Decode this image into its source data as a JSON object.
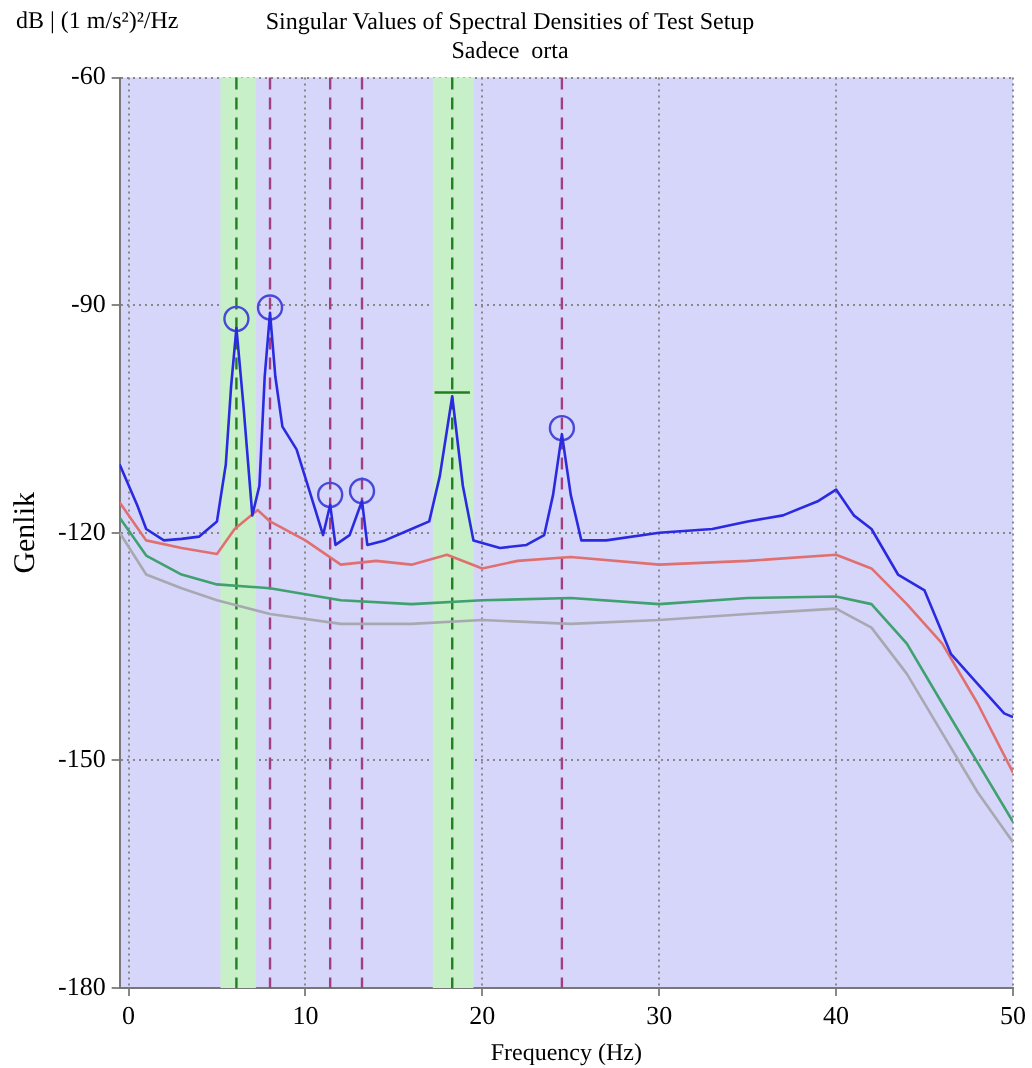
{
  "chart_data": {
    "type": "line",
    "title": "Singular Values of Spectral Densities of Test Setup",
    "subtitle": "Sadece  orta",
    "xlabel": "Frequency (Hz)",
    "ylabel": "Genlik",
    "annotations": [
      "dB | (1 m/s²)²/Hz"
    ],
    "xlim": [
      -0.5,
      50
    ],
    "xticks": [
      0,
      10,
      20,
      30,
      40,
      50
    ],
    "ylim": [
      -180,
      -60
    ],
    "yticks": [
      -60,
      -90,
      -120,
      -150,
      -180
    ],
    "grid": true,
    "legend": false,
    "marker": "none",
    "line_style": "solid",
    "series": [
      {
        "color": "#2a2ae0",
        "x": [
          -0.5,
          0.5,
          1,
          2,
          3,
          4,
          5,
          5.5,
          5.8,
          6.1,
          6.5,
          7,
          7.4,
          7.7,
          8,
          8.3,
          8.7,
          9.5,
          10.3,
          11,
          11.4,
          11.7,
          12.5,
          13.2,
          13.5,
          14.5,
          16,
          17,
          17.6,
          18.3,
          18.9,
          19.5,
          21,
          22.5,
          23.5,
          24,
          24.5,
          25,
          25.6,
          27,
          30,
          33,
          35,
          37,
          39,
          40,
          41,
          42,
          43.5,
          45,
          46.5,
          48,
          49.5,
          50
        ],
        "values": [
          -111,
          -116.4,
          -119.5,
          -121,
          -120.8,
          -120.5,
          -118.5,
          -111,
          -100.7,
          -93,
          -103.3,
          -117.7,
          -113.8,
          -99.4,
          -91,
          -99.4,
          -106,
          -109,
          -115,
          -120.3,
          -116.3,
          -121.6,
          -120.3,
          -115.8,
          -121.6,
          -121,
          -119.5,
          -118.5,
          -112.5,
          -102,
          -113.8,
          -121,
          -122,
          -121.6,
          -120.3,
          -115,
          -107,
          -115,
          -121,
          -121,
          -120,
          -119.5,
          -118.5,
          -117.7,
          -115.8,
          -114.3,
          -117.7,
          -119.5,
          -125.5,
          -127.6,
          -136,
          -139.9,
          -143.8,
          -144.3
        ]
      },
      {
        "color": "#e07070",
        "x": [
          -0.5,
          1,
          3,
          5,
          6,
          7.3,
          8,
          10,
          12,
          14,
          16,
          18,
          20,
          22,
          25,
          30,
          35,
          40,
          42,
          44,
          46,
          48,
          50
        ],
        "values": [
          -116,
          -121,
          -122,
          -122.8,
          -119.5,
          -117,
          -118.5,
          -121,
          -124.2,
          -123.7,
          -124.2,
          -122.9,
          -124.7,
          -123.7,
          -123.2,
          -124.2,
          -123.7,
          -122.9,
          -124.7,
          -129.4,
          -134.6,
          -142.5,
          -151.6
        ]
      },
      {
        "color": "#40a070",
        "x": [
          -0.5,
          1,
          3,
          5,
          8,
          12,
          16,
          20,
          25,
          30,
          35,
          40,
          42,
          44,
          46,
          48,
          50
        ],
        "values": [
          -118,
          -123,
          -125.5,
          -126.8,
          -127.3,
          -128.9,
          -129.4,
          -128.9,
          -128.6,
          -129.4,
          -128.6,
          -128.4,
          -129.4,
          -134.6,
          -142.5,
          -150.3,
          -158.1
        ]
      },
      {
        "color": "#a8a8b0",
        "x": [
          -0.5,
          1,
          3,
          5,
          8,
          12,
          16,
          20,
          25,
          30,
          35,
          40,
          42,
          44,
          46,
          48,
          50
        ],
        "values": [
          -120,
          -125.5,
          -127.3,
          -128.9,
          -130.7,
          -132,
          -132,
          -131.5,
          -132,
          -131.5,
          -130.7,
          -130,
          -132.5,
          -138.6,
          -146.4,
          -154.2,
          -160.8
        ]
      },
      {
        "type": "scatter",
        "marker": "circle",
        "color": "#4848d8",
        "x": [
          6.1,
          8.0,
          11.4,
          13.2,
          24.5
        ],
        "values": [
          -91.8,
          -90.3,
          -115,
          -114.5,
          -106.2
        ]
      },
      {
        "color": "#208020",
        "x": [
          17.3,
          19.3
        ],
        "values": [
          -101.5,
          -101.5
        ]
      }
    ],
    "bands": [
      {
        "axis": "x",
        "from": 5.2,
        "to": 7.2,
        "color": "#c8f0c8"
      },
      {
        "axis": "x",
        "from": 17.2,
        "to": 19.5,
        "color": "#c8f0c8"
      }
    ],
    "ref_lines": [
      {
        "axis": "x",
        "value": 6.1,
        "color": "#208020",
        "line_style": "dashed"
      },
      {
        "axis": "x",
        "value": 8.0,
        "color": "#a04080",
        "line_style": "dashed"
      },
      {
        "axis": "x",
        "value": 11.4,
        "color": "#a04080",
        "line_style": "dashed"
      },
      {
        "axis": "x",
        "value": 13.2,
        "color": "#a04080",
        "line_style": "dashed"
      },
      {
        "axis": "x",
        "value": 18.3,
        "color": "#208020",
        "line_style": "dashed"
      },
      {
        "axis": "x",
        "value": 24.5,
        "color": "#a04080",
        "line_style": "dashed"
      }
    ]
  }
}
